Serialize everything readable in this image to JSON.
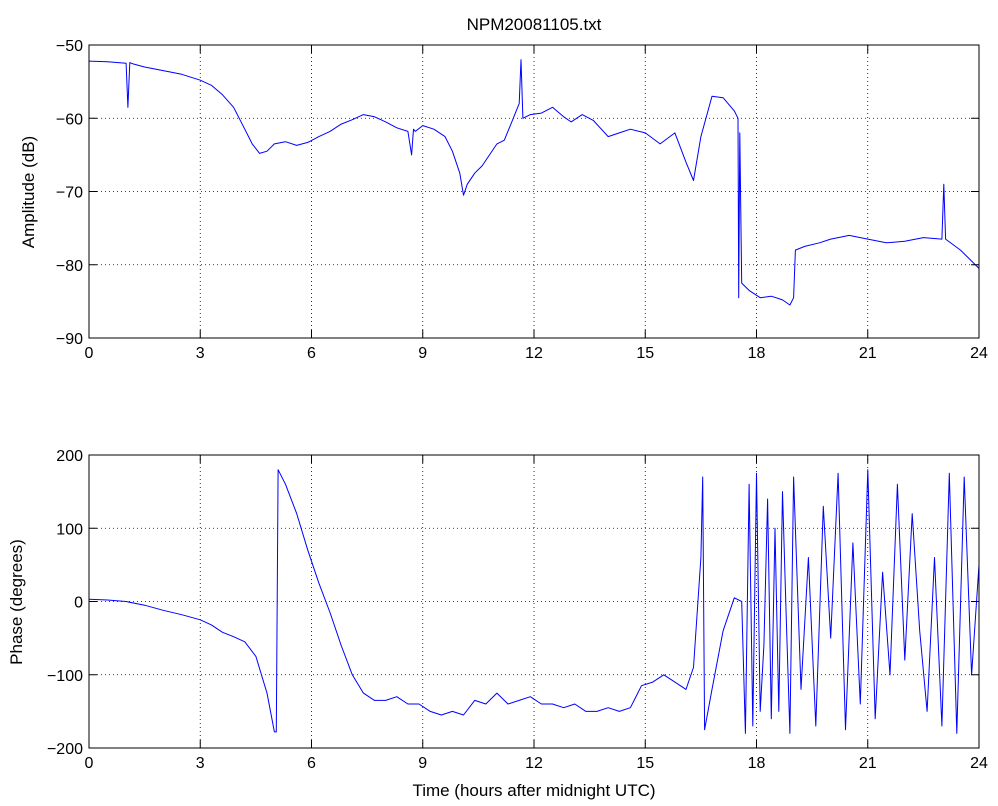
{
  "chart_data": [
    {
      "type": "line",
      "title": "NPM20081105.txt",
      "xlabel": "",
      "ylabel": "Amplitude (dB)",
      "xlim": [
        0,
        24
      ],
      "ylim": [
        -90,
        -50
      ],
      "xticks": [
        0,
        3,
        6,
        9,
        12,
        15,
        18,
        21,
        24
      ],
      "yticks": [
        -90,
        -80,
        -70,
        -60,
        -50
      ],
      "xtick_labels": [
        "0",
        "3",
        "6",
        "9",
        "12",
        "15",
        "18",
        "21",
        "24"
      ],
      "ytick_labels": [
        "−90",
        "−80",
        "−70",
        "−60",
        "−50"
      ],
      "grid": true,
      "series": [
        {
          "color": "#0000ff",
          "x": [
            0,
            0.5,
            1.0,
            1.05,
            1.1,
            1.15,
            1.2,
            1.5,
            2.0,
            2.5,
            3.0,
            3.3,
            3.6,
            3.9,
            4.2,
            4.4,
            4.6,
            4.8,
            5.0,
            5.3,
            5.6,
            5.9,
            6.2,
            6.5,
            6.8,
            7.1,
            7.4,
            7.7,
            8.0,
            8.3,
            8.6,
            8.7,
            8.75,
            8.8,
            9.0,
            9.3,
            9.6,
            9.8,
            10.0,
            10.1,
            10.2,
            10.4,
            10.6,
            10.8,
            11.0,
            11.2,
            11.4,
            11.6,
            11.65,
            11.7,
            11.9,
            12.2,
            12.5,
            12.8,
            13.0,
            13.3,
            13.6,
            14.0,
            14.3,
            14.6,
            15.0,
            15.4,
            15.8,
            16.1,
            16.3,
            16.5,
            16.8,
            17.1,
            17.4,
            17.5,
            17.52,
            17.55,
            17.6,
            17.8,
            18.1,
            18.4,
            18.7,
            18.9,
            19.0,
            19.05,
            19.3,
            19.7,
            20.0,
            20.5,
            21.0,
            21.5,
            22.0,
            22.5,
            23.0,
            23.05,
            23.1,
            23.5,
            24.0
          ],
          "y": [
            -52.2,
            -52.3,
            -52.5,
            -58.5,
            -52.4,
            -52.5,
            -52.6,
            -53.0,
            -53.5,
            -54.0,
            -54.8,
            -55.5,
            -56.8,
            -58.5,
            -61.5,
            -63.5,
            -64.8,
            -64.5,
            -63.5,
            -63.2,
            -63.7,
            -63.3,
            -62.5,
            -61.8,
            -60.8,
            -60.2,
            -59.5,
            -59.8,
            -60.5,
            -61.3,
            -61.8,
            -65.0,
            -61.5,
            -61.8,
            -61.0,
            -61.5,
            -62.5,
            -64.5,
            -67.5,
            -70.5,
            -69.0,
            -67.5,
            -66.5,
            -65.0,
            -63.5,
            -63.0,
            -60.5,
            -58.0,
            -52.0,
            -60.0,
            -59.5,
            -59.3,
            -58.5,
            -59.8,
            -60.5,
            -59.5,
            -60.3,
            -62.5,
            -62.0,
            -61.5,
            -62.0,
            -63.5,
            -62.0,
            -66.0,
            -68.5,
            -62.5,
            -57.0,
            -57.2,
            -59.0,
            -60.0,
            -84.5,
            -62.0,
            -82.5,
            -83.5,
            -84.5,
            -84.3,
            -84.8,
            -85.5,
            -84.5,
            -78.0,
            -77.5,
            -77.0,
            -76.5,
            -76.0,
            -76.5,
            -77.0,
            -76.8,
            -76.3,
            -76.5,
            -69.0,
            -76.5,
            -78.0,
            -80.5
          ]
        }
      ]
    },
    {
      "type": "line",
      "title": "",
      "xlabel": "Time (hours after midnight UTC)",
      "ylabel": "Phase (degrees)",
      "xlim": [
        0,
        24
      ],
      "ylim": [
        -200,
        200
      ],
      "xticks": [
        0,
        3,
        6,
        9,
        12,
        15,
        18,
        21,
        24
      ],
      "yticks": [
        -200,
        -100,
        0,
        100,
        200
      ],
      "xtick_labels": [
        "0",
        "3",
        "6",
        "9",
        "12",
        "15",
        "18",
        "21",
        "24"
      ],
      "ytick_labels": [
        "−200",
        "−100",
        "0",
        "100",
        "200"
      ],
      "grid": true,
      "series": [
        {
          "color": "#0000ff",
          "x": [
            0,
            0.5,
            1.0,
            1.5,
            2.0,
            2.5,
            3.0,
            3.3,
            3.6,
            3.9,
            4.2,
            4.5,
            4.8,
            5.0,
            5.05,
            5.1,
            5.3,
            5.6,
            5.9,
            6.2,
            6.5,
            6.8,
            7.1,
            7.4,
            7.7,
            8.0,
            8.3,
            8.6,
            8.9,
            9.2,
            9.5,
            9.8,
            10.1,
            10.4,
            10.7,
            11.0,
            11.3,
            11.6,
            11.9,
            12.2,
            12.5,
            12.8,
            13.1,
            13.4,
            13.7,
            14.0,
            14.3,
            14.6,
            14.9,
            15.2,
            15.5,
            15.8,
            16.1,
            16.3,
            16.5,
            16.55,
            16.6,
            16.8,
            17.1,
            17.4,
            17.6,
            17.7,
            17.8,
            17.9,
            18.0,
            18.1,
            18.2,
            18.3,
            18.4,
            18.5,
            18.6,
            18.7,
            18.8,
            18.9,
            19.0,
            19.2,
            19.4,
            19.6,
            19.8,
            20.0,
            20.2,
            20.4,
            20.6,
            20.8,
            21.0,
            21.2,
            21.4,
            21.6,
            21.8,
            22.0,
            22.2,
            22.4,
            22.6,
            22.8,
            23.0,
            23.2,
            23.4,
            23.6,
            23.8,
            24.0
          ],
          "y": [
            3,
            2,
            0,
            -5,
            -12,
            -18,
            -25,
            -32,
            -42,
            -48,
            -55,
            -75,
            -125,
            -178,
            -178,
            180,
            160,
            120,
            70,
            25,
            -15,
            -60,
            -100,
            -125,
            -135,
            -135,
            -130,
            -140,
            -140,
            -150,
            -155,
            -150,
            -155,
            -135,
            -140,
            -125,
            -140,
            -135,
            -130,
            -140,
            -140,
            -145,
            -140,
            -150,
            -150,
            -145,
            -150,
            -145,
            -115,
            -110,
            -100,
            -110,
            -120,
            -90,
            60,
            170,
            -175,
            -120,
            -40,
            5,
            0,
            -180,
            160,
            -170,
            175,
            -150,
            -60,
            140,
            -160,
            100,
            -150,
            150,
            -20,
            -180,
            170,
            -120,
            60,
            -170,
            130,
            -50,
            175,
            -175,
            80,
            -140,
            180,
            -160,
            40,
            -100,
            160,
            -80,
            120,
            -40,
            -150,
            60,
            -170,
            175,
            -180,
            170,
            -100,
            50
          ]
        }
      ]
    }
  ]
}
